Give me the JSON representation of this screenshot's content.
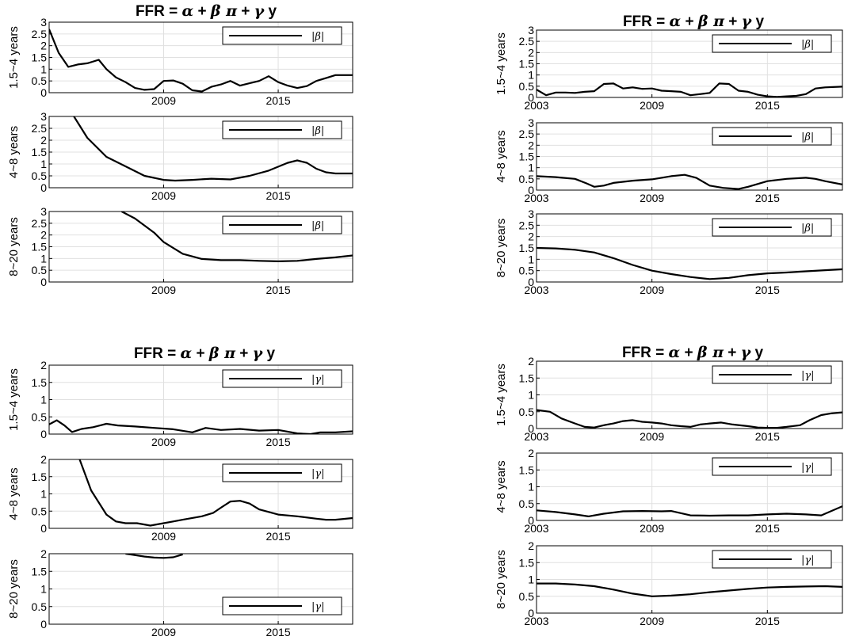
{
  "panels": [
    {
      "title": {
        "lhs": "FFR = ",
        "alpha": "α",
        "plus1": " + ",
        "coef": "β",
        "pi": " π",
        "plus2": " + ",
        "gamma": "γ",
        "y": " y"
      },
      "subplots": [
        {
          "ylabel": "1.5~4 years",
          "legend": "|β|",
          "legend_position": "top-right",
          "xtick_labels": [
            "2009",
            "2015"
          ],
          "first_year_shown": false
        },
        {
          "ylabel": "4~8 years",
          "legend": "|β|",
          "legend_position": "top-right",
          "xtick_labels": [
            "2009",
            "2015"
          ],
          "first_year_shown": false
        },
        {
          "ylabel": "8~20 years",
          "legend": "|β|",
          "legend_position": "top-right",
          "xtick_labels": [
            "2009",
            "2015"
          ],
          "first_year_shown": false
        }
      ]
    },
    {
      "title": {
        "lhs": "FFR = ",
        "alpha": "α",
        "plus1": " + ",
        "coef": "β",
        "pi": " π",
        "plus2": " + ",
        "gamma": "γ",
        "y": " y"
      },
      "subplots": [
        {
          "ylabel": "1.5~4 years",
          "legend": "|β|",
          "legend_position": "top-right",
          "xtick_labels": [
            "2003",
            "2009",
            "2015"
          ],
          "first_year_shown": true
        },
        {
          "ylabel": "4~8 years",
          "legend": "|β|",
          "legend_position": "top-right",
          "xtick_labels": [
            "2003",
            "2009",
            "2015"
          ],
          "first_year_shown": true
        },
        {
          "ylabel": "8~20 years",
          "legend": "|β|",
          "legend_position": "top-right",
          "xtick_labels": [
            "2003",
            "2009",
            "2015"
          ],
          "first_year_shown": true
        }
      ]
    },
    {
      "title": {
        "lhs": "FFR = ",
        "alpha": "α",
        "plus1": " + ",
        "coef": "β",
        "pi": " π",
        "plus2": " + ",
        "gamma": "γ",
        "y": " y"
      },
      "subplots": [
        {
          "ylabel": "1.5~4 years",
          "legend": "|γ|",
          "legend_position": "top-right",
          "xtick_labels": [
            "2009",
            "2015"
          ],
          "first_year_shown": false
        },
        {
          "ylabel": "4~8 years",
          "legend": "|γ|",
          "legend_position": "top-right",
          "xtick_labels": [
            "2009",
            "2015"
          ],
          "first_year_shown": false
        },
        {
          "ylabel": "8~20 years",
          "legend": "|γ|",
          "legend_position": "bottom-right",
          "xtick_labels": [
            "2009",
            "2015"
          ],
          "first_year_shown": false
        }
      ]
    },
    {
      "title": {
        "lhs": "FFR = ",
        "alpha": "α",
        "plus1": " + ",
        "coef": "β",
        "pi": " π",
        "plus2": " + ",
        "gamma": "γ",
        "y": " y"
      },
      "subplots": [
        {
          "ylabel": "1.5~4 years",
          "legend": "|γ|",
          "legend_position": "top-right",
          "xtick_labels": [
            "2003",
            "2009",
            "2015"
          ],
          "first_year_shown": true
        },
        {
          "ylabel": "4~8 years",
          "legend": "|γ|",
          "legend_position": "top-right",
          "xtick_labels": [
            "2003",
            "2009",
            "2015"
          ],
          "first_year_shown": true
        },
        {
          "ylabel": "8~20 years",
          "legend": "|γ|",
          "legend_position": "top-right",
          "xtick_labels": [
            "2003",
            "2009",
            "2015"
          ],
          "first_year_shown": true
        }
      ]
    }
  ],
  "chart_data": [
    {
      "type": "line",
      "panel": 0,
      "subplot": 0,
      "xlim": [
        2003,
        2018.9
      ],
      "ylim": [
        0,
        3
      ],
      "yticks": [
        "0",
        "0.5",
        "1",
        "1.5",
        "2",
        "2.5",
        "3"
      ],
      "grid": true,
      "series": [
        {
          "x": [
            2003,
            2003.5,
            2004,
            2004.5,
            2005,
            2005.6,
            2006,
            2006.5,
            2007,
            2007.5,
            2008,
            2008.5,
            2009,
            2009.5,
            2010,
            2010.5,
            2011,
            2011.5,
            2012,
            2012.5,
            2013,
            2013.5,
            2014,
            2014.5,
            2015,
            2015.5,
            2016,
            2016.5,
            2017,
            2017.5,
            2018,
            2018.9
          ],
          "y": [
            2.7,
            1.7,
            1.1,
            1.2,
            1.25,
            1.4,
            1.0,
            0.65,
            0.45,
            0.2,
            0.12,
            0.15,
            0.5,
            0.52,
            0.38,
            0.1,
            0.05,
            0.25,
            0.35,
            0.5,
            0.3,
            0.4,
            0.5,
            0.7,
            0.45,
            0.3,
            0.2,
            0.28,
            0.5,
            0.62,
            0.75,
            0.75
          ]
        }
      ]
    },
    {
      "type": "line",
      "panel": 0,
      "subplot": 1,
      "xlim": [
        2003,
        2018.9
      ],
      "ylim": [
        0,
        3
      ],
      "yticks": [
        "0",
        "0.5",
        "1",
        "1.5",
        "2",
        "2.5",
        "3"
      ],
      "grid": true,
      "series": [
        {
          "x": [
            2004.3,
            2005,
            2006,
            2007,
            2008,
            2009,
            2009.6,
            2010.5,
            2011.5,
            2012.5,
            2013.5,
            2014.5,
            2015.5,
            2016,
            2016.5,
            2017,
            2017.5,
            2018,
            2018.9
          ],
          "y": [
            3.0,
            2.1,
            1.3,
            0.9,
            0.5,
            0.33,
            0.3,
            0.33,
            0.38,
            0.35,
            0.5,
            0.72,
            1.05,
            1.15,
            1.05,
            0.8,
            0.65,
            0.6,
            0.6
          ]
        }
      ]
    },
    {
      "type": "line",
      "panel": 0,
      "subplot": 2,
      "xlim": [
        2003,
        2018.9
      ],
      "ylim": [
        0,
        3
      ],
      "yticks": [
        "0",
        "0.5",
        "1",
        "1.5",
        "2",
        "2.5",
        "3"
      ],
      "grid": true,
      "series": [
        {
          "x": [
            2006.8,
            2007.5,
            2008.5,
            2009,
            2010,
            2011,
            2012,
            2013,
            2014,
            2015,
            2016,
            2017,
            2018,
            2018.9
          ],
          "y": [
            3.0,
            2.7,
            2.1,
            1.7,
            1.2,
            0.98,
            0.93,
            0.93,
            0.9,
            0.88,
            0.9,
            0.98,
            1.05,
            1.13
          ]
        }
      ]
    },
    {
      "type": "line",
      "panel": 1,
      "subplot": 0,
      "xlim": [
        2003,
        2018.9
      ],
      "ylim": [
        0,
        3
      ],
      "yticks": [
        "0",
        "0.5",
        "1",
        "1.5",
        "2",
        "2.5",
        "3"
      ],
      "grid": true,
      "series": [
        {
          "x": [
            2003,
            2003.5,
            2004,
            2004.5,
            2005,
            2005.5,
            2006,
            2006.5,
            2007,
            2007.5,
            2008,
            2008.5,
            2009,
            2009.5,
            2010,
            2010.5,
            2011,
            2011.5,
            2012,
            2012.5,
            2013,
            2013.5,
            2014,
            2014.5,
            2015,
            2015.5,
            2016,
            2016.5,
            2017,
            2017.5,
            2018,
            2018.9
          ],
          "y": [
            0.35,
            0.1,
            0.22,
            0.22,
            0.2,
            0.25,
            0.28,
            0.6,
            0.62,
            0.4,
            0.45,
            0.38,
            0.4,
            0.3,
            0.28,
            0.25,
            0.1,
            0.15,
            0.2,
            0.62,
            0.6,
            0.3,
            0.25,
            0.12,
            0.05,
            0.02,
            0.05,
            0.07,
            0.15,
            0.4,
            0.45,
            0.48
          ]
        }
      ]
    },
    {
      "type": "line",
      "panel": 1,
      "subplot": 1,
      "xlim": [
        2003,
        2018.9
      ],
      "ylim": [
        0,
        3
      ],
      "yticks": [
        "0",
        "0.5",
        "1",
        "1.5",
        "2",
        "2.5",
        "3"
      ],
      "grid": true,
      "series": [
        {
          "x": [
            2003,
            2004,
            2005,
            2005.6,
            2006,
            2006.5,
            2007,
            2008,
            2009,
            2010,
            2010.7,
            2011.3,
            2012,
            2012.7,
            2013.5,
            2014,
            2015,
            2016,
            2017,
            2017.5,
            2018,
            2018.9
          ],
          "y": [
            0.62,
            0.58,
            0.5,
            0.3,
            0.15,
            0.2,
            0.32,
            0.42,
            0.48,
            0.62,
            0.68,
            0.55,
            0.2,
            0.1,
            0.05,
            0.15,
            0.4,
            0.5,
            0.55,
            0.5,
            0.4,
            0.25
          ]
        }
      ]
    },
    {
      "type": "line",
      "panel": 1,
      "subplot": 2,
      "xlim": [
        2003,
        2018.9
      ],
      "ylim": [
        0,
        3
      ],
      "yticks": [
        "0",
        "0.5",
        "1",
        "1.5",
        "2",
        "2.5",
        "3"
      ],
      "grid": true,
      "series": [
        {
          "x": [
            2003,
            2004,
            2005,
            2006,
            2007,
            2008,
            2009,
            2010,
            2011,
            2012,
            2013,
            2014,
            2015,
            2016,
            2017,
            2018,
            2018.9
          ],
          "y": [
            1.5,
            1.48,
            1.42,
            1.3,
            1.05,
            0.75,
            0.5,
            0.35,
            0.22,
            0.13,
            0.18,
            0.3,
            0.38,
            0.42,
            0.47,
            0.52,
            0.56
          ]
        }
      ]
    },
    {
      "type": "line",
      "panel": 2,
      "subplot": 0,
      "xlim": [
        2003,
        2018.9
      ],
      "ylim": [
        0,
        2
      ],
      "yticks": [
        "0",
        "0.5",
        "1",
        "1.5",
        "2"
      ],
      "grid": true,
      "series": [
        {
          "x": [
            2003,
            2003.4,
            2003.8,
            2004.2,
            2004.7,
            2005.3,
            2006,
            2006.6,
            2007.5,
            2008.5,
            2009.5,
            2010.5,
            2011.2,
            2012,
            2013,
            2014,
            2015,
            2016,
            2016.7,
            2017.2,
            2018,
            2018.9
          ],
          "y": [
            0.28,
            0.4,
            0.25,
            0.06,
            0.15,
            0.2,
            0.3,
            0.25,
            0.22,
            0.18,
            0.14,
            0.05,
            0.18,
            0.12,
            0.15,
            0.1,
            0.12,
            0.02,
            0.0,
            0.05,
            0.05,
            0.08
          ]
        }
      ]
    },
    {
      "type": "line",
      "panel": 2,
      "subplot": 1,
      "xlim": [
        2003,
        2018.9
      ],
      "ylim": [
        0,
        2
      ],
      "yticks": [
        "0",
        "0.5",
        "1",
        "1.5",
        "2"
      ],
      "grid": true,
      "series": [
        {
          "x": [
            2004.6,
            2005.2,
            2006,
            2006.5,
            2007,
            2007.6,
            2008.3,
            2009,
            2009.5,
            2010,
            2011,
            2011.6,
            2012,
            2012.5,
            2013,
            2013.5,
            2014,
            2015,
            2016,
            2017,
            2017.5,
            2018,
            2018.9
          ],
          "y": [
            2.0,
            1.1,
            0.4,
            0.2,
            0.15,
            0.15,
            0.08,
            0.15,
            0.2,
            0.25,
            0.35,
            0.45,
            0.6,
            0.78,
            0.8,
            0.72,
            0.55,
            0.4,
            0.35,
            0.28,
            0.25,
            0.25,
            0.3
          ]
        }
      ]
    },
    {
      "type": "line",
      "panel": 2,
      "subplot": 2,
      "xlim": [
        2003,
        2018.9
      ],
      "ylim": [
        0,
        2
      ],
      "yticks": [
        "0",
        "0.5",
        "1",
        "1.5",
        "2"
      ],
      "grid": true,
      "series": [
        {
          "x": [
            2007,
            2007.5,
            2008,
            2008.5,
            2009,
            2009.5,
            2010
          ],
          "y": [
            2.0,
            1.96,
            1.92,
            1.89,
            1.88,
            1.9,
            1.98
          ]
        }
      ]
    },
    {
      "type": "line",
      "panel": 3,
      "subplot": 0,
      "xlim": [
        2003,
        2018.9
      ],
      "ylim": [
        0,
        2
      ],
      "yticks": [
        "0",
        "0.5",
        "1",
        "1.5",
        "2"
      ],
      "grid": true,
      "series": [
        {
          "x": [
            2003,
            2003.7,
            2004.3,
            2005,
            2005.5,
            2006,
            2006.5,
            2007,
            2007.5,
            2008,
            2008.5,
            2009,
            2009.5,
            2010,
            2010.5,
            2011,
            2011.5,
            2012,
            2012.6,
            2013.2,
            2014,
            2014.5,
            2015,
            2015.5,
            2016,
            2016.7,
            2017.2,
            2017.8,
            2018.3,
            2018.9
          ],
          "y": [
            0.55,
            0.5,
            0.3,
            0.15,
            0.05,
            0.03,
            0.1,
            0.15,
            0.22,
            0.25,
            0.2,
            0.18,
            0.15,
            0.1,
            0.07,
            0.05,
            0.12,
            0.15,
            0.18,
            0.12,
            0.07,
            0.03,
            0.02,
            0.02,
            0.05,
            0.1,
            0.25,
            0.4,
            0.45,
            0.48
          ]
        }
      ]
    },
    {
      "type": "line",
      "panel": 3,
      "subplot": 1,
      "xlim": [
        2003,
        2018.9
      ],
      "ylim": [
        0,
        2
      ],
      "yticks": [
        "0",
        "0.5",
        "1",
        "1.5",
        "2"
      ],
      "grid": true,
      "series": [
        {
          "x": [
            2003,
            2004,
            2005,
            2005.7,
            2006.5,
            2007.5,
            2008.5,
            2009.5,
            2010,
            2011,
            2012,
            2013,
            2014,
            2015,
            2016,
            2017,
            2017.8,
            2018.9
          ],
          "y": [
            0.3,
            0.25,
            0.18,
            0.12,
            0.2,
            0.27,
            0.28,
            0.27,
            0.28,
            0.15,
            0.14,
            0.15,
            0.15,
            0.18,
            0.2,
            0.18,
            0.15,
            0.42
          ]
        }
      ]
    },
    {
      "type": "line",
      "panel": 3,
      "subplot": 2,
      "xlim": [
        2003,
        2018.9
      ],
      "ylim": [
        0,
        2
      ],
      "yticks": [
        "0",
        "0.5",
        "1",
        "1.5",
        "2"
      ],
      "grid": true,
      "series": [
        {
          "x": [
            2003,
            2004,
            2005,
            2006,
            2007,
            2008,
            2009,
            2010,
            2011,
            2012,
            2013,
            2014,
            2015,
            2016,
            2017,
            2018,
            2018.9
          ],
          "y": [
            0.88,
            0.88,
            0.85,
            0.8,
            0.7,
            0.58,
            0.5,
            0.52,
            0.56,
            0.62,
            0.67,
            0.72,
            0.76,
            0.78,
            0.79,
            0.8,
            0.78
          ]
        }
      ]
    }
  ]
}
